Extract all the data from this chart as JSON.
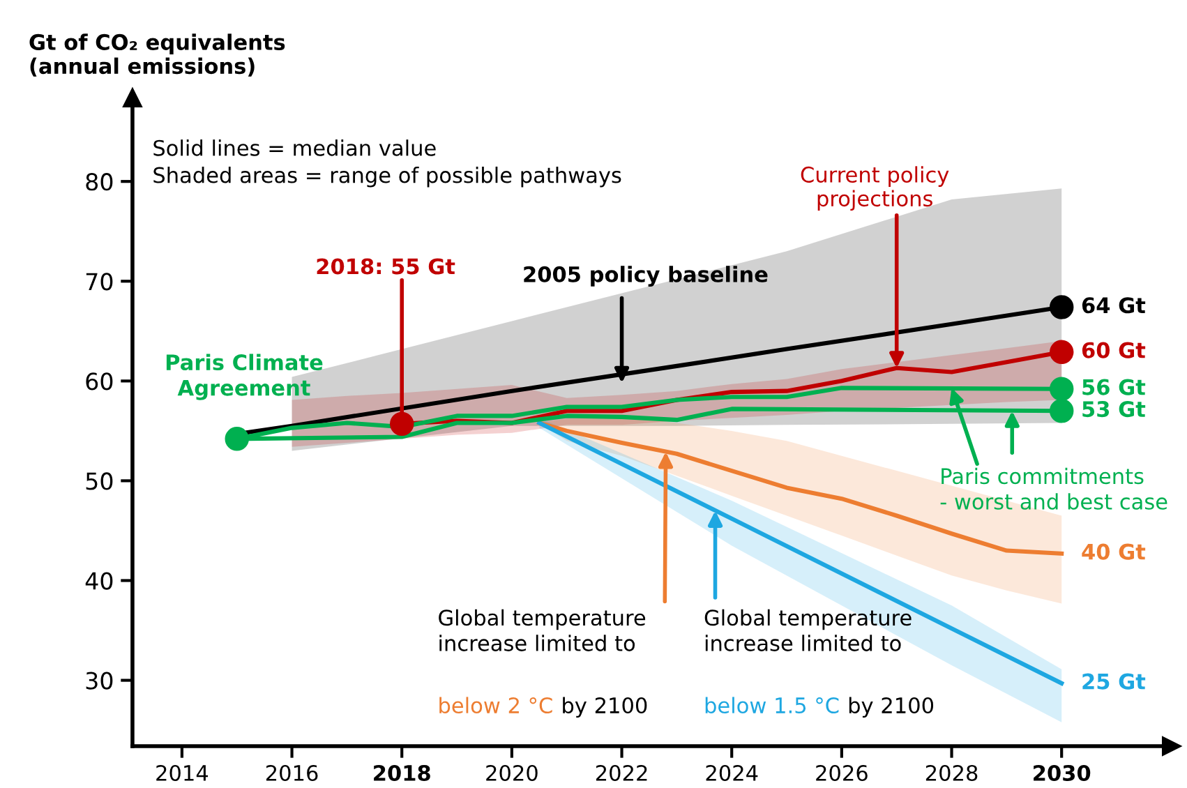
{
  "chart_data": {
    "type": "line",
    "ylabel": "Gt of CO₂ equivalents\n(annual emissions)",
    "xlim": [
      2013.1,
      2032
    ],
    "ylim": [
      23.4,
      88.4
    ],
    "xticks": [
      2014,
      2016,
      2018,
      2020,
      2022,
      2024,
      2026,
      2028,
      2030
    ],
    "yticks": [
      30,
      40,
      50,
      60,
      70,
      80
    ],
    "grid": false,
    "legend": false,
    "line_style": "solid",
    "series": [
      {
        "color": "#000000",
        "x": [
          2015,
          2016,
          2020,
          2023,
          2025,
          2028,
          2030
        ],
        "values": [
          54.7,
          55.5,
          59.0,
          61.5,
          63.2,
          65.7,
          67.4
        ],
        "lower": [
          null,
          53.0,
          55.5,
          55.5,
          55.6,
          55.7,
          55.8
        ],
        "upper": [
          null,
          60.4,
          66.0,
          70.2,
          73.0,
          78.2,
          79.3
        ]
      },
      {
        "color": "#c00000",
        "x": [
          2016,
          2017,
          2018,
          2019,
          2020,
          2021,
          2022,
          2023,
          2024,
          2025,
          2026,
          2027,
          2028,
          2029,
          2030
        ],
        "values": [
          null,
          null,
          55.7,
          56.0,
          55.8,
          57.0,
          57.0,
          58.1,
          58.9,
          59.0,
          60.0,
          61.3,
          60.9,
          61.9,
          62.9
        ],
        "lower": [
          53.4,
          53.8,
          54.2,
          54.6,
          54.8,
          55.6,
          55.6,
          56.0,
          56.3,
          56.6,
          57.0,
          null,
          null,
          57.9,
          58.1
        ],
        "upper": [
          58.1,
          58.5,
          58.8,
          59.2,
          59.6,
          58.3,
          58.6,
          59.0,
          59.7,
          60.2,
          61.2,
          null,
          null,
          63.3,
          64.0
        ]
      },
      {
        "color": "#ed7d31",
        "x": [
          2020.5,
          2021,
          2022,
          2023,
          2024,
          2025,
          2026,
          2027,
          2028,
          2029,
          2030
        ],
        "values": [
          55.8,
          55.0,
          53.8,
          52.7,
          51.0,
          49.3,
          48.2,
          46.5,
          44.7,
          43.0,
          42.7
        ],
        "lower": [
          55.8,
          54.0,
          52.5,
          50.5,
          48.5,
          46.5,
          44.5,
          42.5,
          40.5,
          39.0,
          37.7
        ],
        "upper": [
          55.8,
          56.2,
          56.5,
          55.8,
          55.0,
          54.0,
          52.5,
          51.0,
          49.5,
          48.0,
          46.5
        ]
      },
      {
        "color": "#1ea7e1",
        "x": [
          2020.5,
          2024,
          2028,
          2030
        ],
        "values": [
          55.8,
          46.2,
          35.2,
          29.7
        ],
        "lower": [
          55.3,
          43.5,
          31.5,
          25.8
        ],
        "upper": [
          56.3,
          48.0,
          37.5,
          31.1
        ]
      },
      {
        "color": "#00b050",
        "x": [
          2015,
          2016,
          2017,
          2018,
          2019,
          2020,
          2021,
          2022,
          2023,
          2024,
          2025,
          2026,
          2030
        ],
        "values": [
          54.2,
          55.3,
          55.8,
          55.4,
          56.5,
          56.5,
          57.4,
          57.4,
          58.1,
          58.4,
          58.4,
          59.3,
          59.2
        ]
      },
      {
        "color": "#00b050",
        "x": [
          2015,
          2018,
          2019,
          2020,
          2021,
          2022,
          2023,
          2024,
          2030
        ],
        "values": [
          54.2,
          54.4,
          55.8,
          55.8,
          56.5,
          56.4,
          56.1,
          57.2,
          57.0
        ]
      },
      {
        "type": "scatter",
        "marker": "circle",
        "color": "#00b050",
        "x": [
          2015,
          2030,
          2030
        ],
        "values": [
          54.2,
          59.2,
          57.0
        ]
      },
      {
        "type": "scatter",
        "marker": "circle",
        "color": "#c00000",
        "x": [
          2018,
          2030
        ],
        "values": [
          55.7,
          62.9
        ]
      },
      {
        "type": "scatter",
        "marker": "circle",
        "color": "#000000",
        "x": [
          2030
        ],
        "values": [
          67.4
        ]
      }
    ],
    "annotations": [
      "Solid lines = median value\nShaded areas = range of possible pathways",
      {
        "text": "2005 policy baseline",
        "x": 2022,
        "y": 59.8
      },
      {
        "text": "Current policy\nprojections",
        "x": 2027,
        "y": 61.3
      },
      {
        "text": "2018: 55 Gt",
        "x": 2018,
        "y": 55.7
      },
      {
        "text": "Paris Climate\nAgreement",
        "x": 2015,
        "y": 54.2
      },
      {
        "text": "64 Gt",
        "x": 2030,
        "y": 67.4
      },
      {
        "text": "60 Gt",
        "x": 2030,
        "y": 62.9
      },
      {
        "text": "56 Gt",
        "x": 2030,
        "y": 59.2
      },
      {
        "text": "53 Gt",
        "x": 2030,
        "y": 57.0
      },
      {
        "text": "40 Gt",
        "x": 2030,
        "y": 42.7
      },
      {
        "text": "25 Gt",
        "x": 2030,
        "y": 29.7
      },
      {
        "text": "Paris commitments\n- worst and best case",
        "x": 2028,
        "y": 59.3
      },
      {
        "text": "Global temperature\nincrease limited to",
        "x": 2022.8,
        "y": 52.9
      },
      "below 2 °C",
      "by 2100",
      {
        "text": "Global temperature\nincrease limited to",
        "x": 2023.7,
        "y": 47.0
      },
      "below 1.5 °C",
      "by 2100"
    ]
  }
}
